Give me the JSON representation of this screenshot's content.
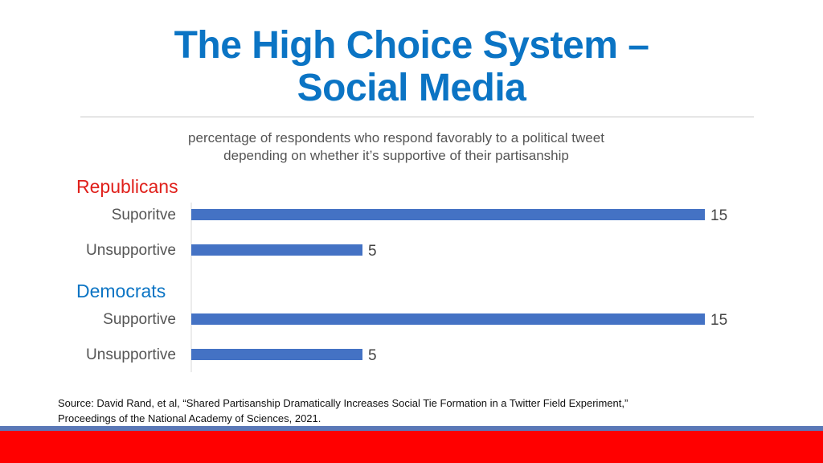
{
  "slide": {
    "title_line1": "The High Choice System –",
    "title_line2": "Social Media",
    "subtitle_line1": "percentage of respondents who respond favorably to a political tweet",
    "subtitle_line2": "depending on whether it’s supportive of their partisanship",
    "source_line1": "Source: David Rand, et al, “Shared Partisanship Dramatically Increases Social Tie Formation in a Twitter Field Experiment,”",
    "source_line2": "Proceedings of the National Academy of Sciences, 2021."
  },
  "colors": {
    "title": "#0b74c4",
    "bar": "#4472c4",
    "republicans": "#e0201b",
    "democrats": "#0b74c4",
    "footer_band": "#ff0000",
    "footer_stripe": "#5a78b7"
  },
  "chart_data": {
    "type": "bar",
    "orientation": "horizontal",
    "xlim": [
      0,
      15
    ],
    "grid": false,
    "groups": [
      {
        "name": "Republicans",
        "color": "#e0201b",
        "categories": [
          "Suporitve",
          "Unsupportive"
        ],
        "values": [
          15,
          5
        ]
      },
      {
        "name": "Democrats",
        "color": "#0b74c4",
        "categories": [
          "Supportive",
          "Unsupportive"
        ],
        "values": [
          15,
          5
        ]
      }
    ]
  }
}
